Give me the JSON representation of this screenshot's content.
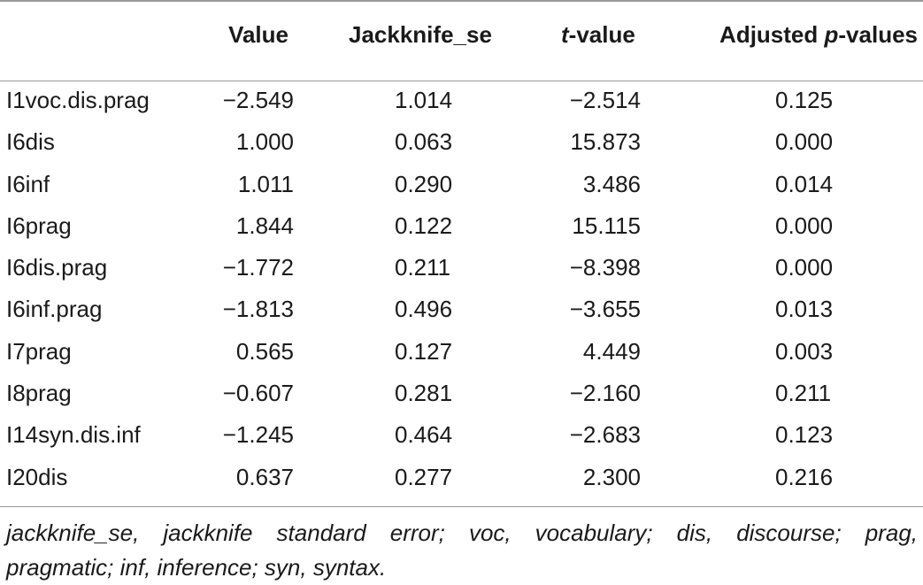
{
  "table": {
    "headers": {
      "value": "Value",
      "jackknife_se": "Jackknife_se",
      "t_value": "t-value",
      "adjusted_p": "Adjusted p-values"
    },
    "rows": [
      {
        "name": "I1voc.dis.prag",
        "value": "−2.549",
        "jackknife_se": "1.014",
        "t_value": "−2.514",
        "adjusted_p": "0.125"
      },
      {
        "name": "I6dis",
        "value": "1.000",
        "jackknife_se": "0.063",
        "t_value": "15.873",
        "adjusted_p": "0.000"
      },
      {
        "name": "I6inf",
        "value": "1.011",
        "jackknife_se": "0.290",
        "t_value": "3.486",
        "adjusted_p": "0.014"
      },
      {
        "name": "I6prag",
        "value": "1.844",
        "jackknife_se": "0.122",
        "t_value": "15.115",
        "adjusted_p": "0.000"
      },
      {
        "name": "I6dis.prag",
        "value": "−1.772",
        "jackknife_se": "0.211",
        "t_value": "−8.398",
        "adjusted_p": "0.000"
      },
      {
        "name": "I6inf.prag",
        "value": "−1.813",
        "jackknife_se": "0.496",
        "t_value": "−3.655",
        "adjusted_p": "0.013"
      },
      {
        "name": "I7prag",
        "value": "0.565",
        "jackknife_se": "0.127",
        "t_value": "4.449",
        "adjusted_p": "0.003"
      },
      {
        "name": "I8prag",
        "value": "−0.607",
        "jackknife_se": "0.281",
        "t_value": "−2.160",
        "adjusted_p": "0.211"
      },
      {
        "name": "I14syn.dis.inf",
        "value": "−1.245",
        "jackknife_se": "0.464",
        "t_value": "−2.683",
        "adjusted_p": "0.123"
      },
      {
        "name": "I20dis",
        "value": "0.637",
        "jackknife_se": "0.277",
        "t_value": "2.300",
        "adjusted_p": "0.216"
      }
    ]
  },
  "footnote": {
    "line1": "jackknife_se, jackknife standard error; voc, vocabulary; dis, discourse; prag,",
    "line2": "pragmatic; inf, inference; syn, syntax."
  }
}
